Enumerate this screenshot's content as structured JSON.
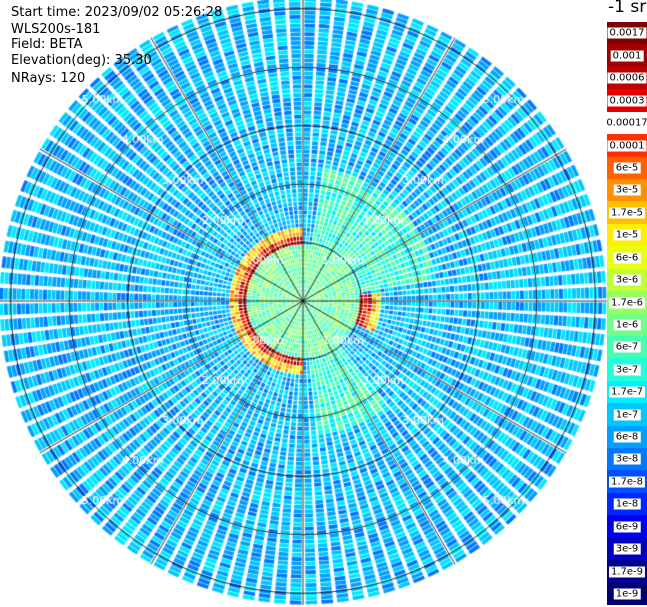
{
  "info": {
    "start_time": "Start time: 2023/09/02 05:26:28",
    "instrument": "WLS200s-181",
    "field": "Field: BETA",
    "elevation": "Elevation(deg): 35.30",
    "nrays": "NRays: 120"
  },
  "colorbar": {
    "title": "-1 sr",
    "levels": [
      {
        "label": "0.0017",
        "color": "#7f0000"
      },
      {
        "label": "0.001",
        "color": "#a00000"
      },
      {
        "label": "0.0006",
        "color": "#c00000"
      },
      {
        "label": "0.0003",
        "color": "#e00000"
      },
      {
        "label": "0.00017",
        "color": "#ffffff"
      },
      {
        "label": "0.0001",
        "color": "#ff3000"
      },
      {
        "label": "6e-5",
        "color": "#ff6000"
      },
      {
        "label": "3e-5",
        "color": "#ff9000"
      },
      {
        "label": "1.7e-5",
        "color": "#ffc000"
      },
      {
        "label": "1e-5",
        "color": "#ffee00"
      },
      {
        "label": "6e-6",
        "color": "#e8ff10"
      },
      {
        "label": "3e-6",
        "color": "#c0ff38"
      },
      {
        "label": "1.7e-6",
        "color": "#98ff60"
      },
      {
        "label": "1e-6",
        "color": "#70ff88"
      },
      {
        "label": "6e-7",
        "color": "#48ffb0"
      },
      {
        "label": "3e-7",
        "color": "#20ffd8"
      },
      {
        "label": "1.7e-7",
        "color": "#00f0ff"
      },
      {
        "label": "1e-7",
        "color": "#00c8ff"
      },
      {
        "label": "6e-8",
        "color": "#00a0ff"
      },
      {
        "label": "3e-8",
        "color": "#0078ff"
      },
      {
        "label": "1.7e-8",
        "color": "#0050ff"
      },
      {
        "label": "1e-8",
        "color": "#0028ff"
      },
      {
        "label": "6e-9",
        "color": "#0000f0"
      },
      {
        "label": "3e-9",
        "color": "#0000c0"
      },
      {
        "label": "1.7e-9",
        "color": "#000090"
      },
      {
        "label": "1e-9",
        "color": "#000070"
      }
    ]
  },
  "chart_data": {
    "type": "heatmap",
    "projection": "polar",
    "title": "",
    "field": "BETA",
    "rays": 120,
    "rings_km": [
      1,
      2,
      3,
      4,
      5
    ],
    "range_max_km": 5.2,
    "ring_labels": [
      "1.00km",
      "2.00km",
      "3.00km",
      "4.00km",
      "5.00km"
    ],
    "spokes_deg": [
      0,
      30,
      60,
      90,
      120,
      150,
      180,
      210,
      240,
      270,
      300,
      330
    ],
    "features": [
      {
        "description_level": "high backscatter ring",
        "range_km": 1.05,
        "azimuth_deg": [
          180,
          360
        ],
        "beta": 0.0003
      },
      {
        "description_level": "high backscatter patch",
        "range_km": 1.1,
        "azimuth_deg": [
          85,
          115
        ],
        "beta": 0.0001
      },
      {
        "description_level": "elevated sector",
        "range_km": [
          1.0,
          2.3
        ],
        "azimuth_deg": [
          10,
          80
        ],
        "beta": 3e-07
      },
      {
        "description_level": "elevated sector",
        "range_km": [
          1.0,
          2.3
        ],
        "azimuth_deg": [
          140,
          175
        ],
        "beta": 3e-07
      }
    ],
    "background_beta": 3e-08,
    "near_range_beta": 6e-07
  }
}
